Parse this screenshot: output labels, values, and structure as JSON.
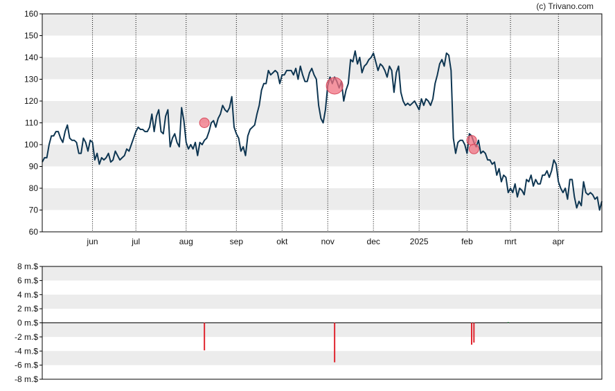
{
  "credit": "(c) Trivano.com",
  "colors": {
    "price_line": "#0d3551",
    "band": "#ececec",
    "marker_fill": "#f07080",
    "marker_stroke": "#d84a5c",
    "volume_negative": "#e0242e",
    "volume_positive": "#1f8a3a",
    "frame": "#000000",
    "month_grid": "#000000"
  },
  "chart_data": [
    {
      "id": "price",
      "type": "line",
      "grid": "horizontal bands + dotted vertical month lines",
      "ylim": [
        60,
        160
      ],
      "yticks": [
        60,
        70,
        80,
        90,
        100,
        110,
        120,
        130,
        140,
        150,
        160
      ],
      "ytick_labels": [
        "60",
        "70",
        "80",
        "90",
        "100",
        "110",
        "120",
        "130",
        "140",
        "150",
        "160"
      ],
      "x_unit": "trading day index",
      "xlim": [
        0,
        245
      ],
      "month_ticks": [
        {
          "label": "jun",
          "x": 22
        },
        {
          "label": "jul",
          "x": 41
        },
        {
          "label": "aug",
          "x": 63
        },
        {
          "label": "sep",
          "x": 85
        },
        {
          "label": "okt",
          "x": 105
        },
        {
          "label": "nov",
          "x": 125
        },
        {
          "label": "dec",
          "x": 145
        },
        {
          "label": "2025",
          "x": 165
        },
        {
          "label": "feb",
          "x": 186
        },
        {
          "label": "mrt",
          "x": 205
        },
        {
          "label": "apr",
          "x": 226
        }
      ],
      "series": [
        {
          "points": [
            [
              0,
              92
            ],
            [
              1,
              94
            ],
            [
              2,
              94
            ],
            [
              3,
              100
            ],
            [
              4,
              104
            ],
            [
              5,
              104
            ],
            [
              6,
              106
            ],
            [
              7,
              106
            ],
            [
              8,
              103
            ],
            [
              9,
              101
            ],
            [
              10,
              106
            ],
            [
              11,
              109
            ],
            [
              12,
              103
            ],
            [
              13,
              102
            ],
            [
              14,
              102
            ],
            [
              15,
              101
            ],
            [
              16,
              96
            ],
            [
              17,
              96
            ],
            [
              18,
              103
            ],
            [
              19,
              101
            ],
            [
              20,
              97
            ],
            [
              21,
              102
            ],
            [
              22,
              101
            ],
            [
              23,
              93
            ],
            [
              24,
              96
            ],
            [
              25,
              91
            ],
            [
              26,
              94
            ],
            [
              27,
              93
            ],
            [
              28,
              94
            ],
            [
              29,
              96
            ],
            [
              30,
              92
            ],
            [
              31,
              93
            ],
            [
              32,
              97
            ],
            [
              33,
              95
            ],
            [
              34,
              93
            ],
            [
              35,
              94
            ],
            [
              36,
              95
            ],
            [
              37,
              98
            ],
            [
              38,
              97
            ],
            [
              39,
              100
            ],
            [
              40,
              103
            ],
            [
              41,
              106
            ],
            [
              42,
              108
            ],
            [
              43,
              107
            ],
            [
              44,
              107
            ],
            [
              45,
              106
            ],
            [
              46,
              106
            ],
            [
              47,
              108
            ],
            [
              48,
              114
            ],
            [
              49,
              106
            ],
            [
              50,
              113
            ],
            [
              51,
              116
            ],
            [
              52,
              106
            ],
            [
              53,
              105
            ],
            [
              54,
              113
            ],
            [
              55,
              116
            ],
            [
              56,
              99
            ],
            [
              57,
              103
            ],
            [
              58,
              105
            ],
            [
              59,
              101
            ],
            [
              60,
              99
            ],
            [
              61,
              117
            ],
            [
              62,
              111
            ],
            [
              63,
              101
            ],
            [
              64,
              98
            ],
            [
              65,
              100
            ],
            [
              66,
              98
            ],
            [
              67,
              101
            ],
            [
              68,
              95
            ],
            [
              69,
              101
            ],
            [
              70,
              100
            ],
            [
              71,
              102
            ],
            [
              72,
              103
            ],
            [
              73,
              106
            ],
            [
              74,
              110
            ],
            [
              75,
              111
            ],
            [
              76,
              108
            ],
            [
              77,
              112
            ],
            [
              78,
              114
            ],
            [
              79,
              118
            ],
            [
              80,
              116
            ],
            [
              81,
              115
            ],
            [
              82,
              117
            ],
            [
              83,
              122
            ],
            [
              84,
              108
            ],
            [
              85,
              105
            ],
            [
              86,
              103
            ],
            [
              87,
              97
            ],
            [
              88,
              99
            ],
            [
              89,
              95
            ],
            [
              90,
              104
            ],
            [
              91,
              107
            ],
            [
              92,
              108
            ],
            [
              93,
              109
            ],
            [
              94,
              114
            ],
            [
              95,
              118
            ],
            [
              96,
              125
            ],
            [
              97,
              128
            ],
            [
              98,
              128
            ],
            [
              99,
              134
            ],
            [
              100,
              132
            ],
            [
              101,
              133
            ],
            [
              102,
              134
            ],
            [
              103,
              133
            ],
            [
              104,
              128
            ],
            [
              105,
              132
            ],
            [
              106,
              132
            ],
            [
              107,
              134
            ],
            [
              108,
              134
            ],
            [
              109,
              134
            ],
            [
              110,
              132
            ],
            [
              111,
              135
            ],
            [
              112,
              130
            ],
            [
              113,
              136
            ],
            [
              114,
              132
            ],
            [
              115,
              129
            ],
            [
              116,
              129
            ],
            [
              117,
              133
            ],
            [
              118,
              135
            ],
            [
              119,
              132
            ],
            [
              120,
              130
            ],
            [
              121,
              118
            ],
            [
              122,
              112
            ],
            [
              123,
              110
            ],
            [
              124,
              116
            ],
            [
              125,
              127
            ],
            [
              126,
              131
            ],
            [
              127,
              128
            ],
            [
              128,
              131
            ],
            [
              129,
              129
            ],
            [
              130,
              126
            ],
            [
              131,
              129
            ],
            [
              132,
              120
            ],
            [
              133,
              125
            ],
            [
              134,
              128
            ],
            [
              135,
              139
            ],
            [
              136,
              138
            ],
            [
              137,
              143
            ],
            [
              138,
              137
            ],
            [
              139,
              140
            ],
            [
              140,
              133
            ],
            [
              141,
              136
            ],
            [
              142,
              137
            ],
            [
              143,
              139
            ],
            [
              144,
              140
            ],
            [
              145,
              142
            ],
            [
              146,
              138
            ],
            [
              147,
              134
            ],
            [
              148,
              137
            ],
            [
              149,
              136
            ],
            [
              150,
              134
            ],
            [
              151,
              131
            ],
            [
              152,
              136
            ],
            [
              153,
              134
            ],
            [
              154,
              124
            ],
            [
              155,
              133
            ],
            [
              156,
              136
            ],
            [
              157,
              124
            ],
            [
              158,
              120
            ],
            [
              159,
              118
            ],
            [
              160,
              119
            ],
            [
              161,
              118
            ],
            [
              162,
              119
            ],
            [
              163,
              120
            ],
            [
              164,
              118
            ],
            [
              165,
              116
            ],
            [
              166,
              121
            ],
            [
              167,
              118
            ],
            [
              168,
              121
            ],
            [
              169,
              120
            ],
            [
              170,
              118
            ],
            [
              171,
              121
            ],
            [
              172,
              128
            ],
            [
              173,
              132
            ],
            [
              174,
              137
            ],
            [
              175,
              139
            ],
            [
              176,
              136
            ],
            [
              177,
              142
            ],
            [
              178,
              141
            ],
            [
              179,
              134
            ],
            [
              180,
              103
            ],
            [
              181,
              96
            ],
            [
              182,
              101
            ],
            [
              183,
              102
            ],
            [
              184,
              102
            ],
            [
              185,
              100
            ],
            [
              186,
              96
            ],
            [
              187,
              105
            ],
            [
              188,
              104
            ],
            [
              189,
              101
            ],
            [
              190,
              99
            ],
            [
              191,
              102
            ],
            [
              192,
              96
            ],
            [
              193,
              97
            ],
            [
              194,
              96
            ],
            [
              195,
              93
            ],
            [
              196,
              93
            ],
            [
              197,
              91
            ],
            [
              198,
              92
            ],
            [
              199,
              86
            ],
            [
              200,
              89
            ],
            [
              201,
              83
            ],
            [
              202,
              86
            ],
            [
              203,
              85
            ],
            [
              204,
              78
            ],
            [
              205,
              80
            ],
            [
              206,
              78
            ],
            [
              207,
              82
            ],
            [
              208,
              76
            ],
            [
              209,
              80
            ],
            [
              210,
              79
            ],
            [
              211,
              77
            ],
            [
              212,
              84
            ],
            [
              213,
              83
            ],
            [
              214,
              86
            ],
            [
              215,
              81
            ],
            [
              216,
              84
            ],
            [
              217,
              82
            ],
            [
              218,
              82
            ],
            [
              219,
              86
            ],
            [
              220,
              86
            ],
            [
              221,
              88
            ],
            [
              222,
              85
            ],
            [
              223,
              88
            ],
            [
              224,
              93
            ],
            [
              225,
              91
            ],
            [
              226,
              83
            ],
            [
              227,
              80
            ],
            [
              228,
              78
            ],
            [
              229,
              80
            ],
            [
              230,
              75
            ],
            [
              231,
              84
            ],
            [
              232,
              84
            ],
            [
              233,
              76
            ],
            [
              234,
              71
            ],
            [
              235,
              74
            ],
            [
              236,
              72
            ],
            [
              237,
              83
            ],
            [
              238,
              78
            ],
            [
              239,
              77
            ],
            [
              240,
              78
            ],
            [
              241,
              77
            ],
            [
              242,
              75
            ],
            [
              243,
              76
            ],
            [
              244,
              70
            ],
            [
              245,
              74
            ]
          ]
        }
      ],
      "markers": [
        {
          "x": 71,
          "y": 110,
          "size": "small"
        },
        {
          "x": 128,
          "y": 127,
          "size": "large"
        },
        {
          "x": 188,
          "y": 102,
          "size": "small"
        },
        {
          "x": 189,
          "y": 98,
          "size": "small"
        }
      ]
    },
    {
      "id": "volume",
      "type": "bar",
      "ylim": [
        -8,
        8
      ],
      "yticks": [
        -8,
        -6,
        -4,
        -2,
        0,
        2,
        4,
        6,
        8
      ],
      "ytick_labels": [
        "-8 m.$",
        "-6 m.$",
        "-4 m.$",
        "-2 m.$",
        "0 m.$",
        "2 m.$",
        "4 m.$",
        "6 m.$",
        "8 m.$"
      ],
      "bars": [
        {
          "x": 71,
          "value": -3.9
        },
        {
          "x": 128,
          "value": -5.6
        },
        {
          "x": 188,
          "value": -3.1
        },
        {
          "x": 189,
          "value": -2.8
        },
        {
          "x": 204,
          "value": 0.1
        }
      ]
    }
  ]
}
